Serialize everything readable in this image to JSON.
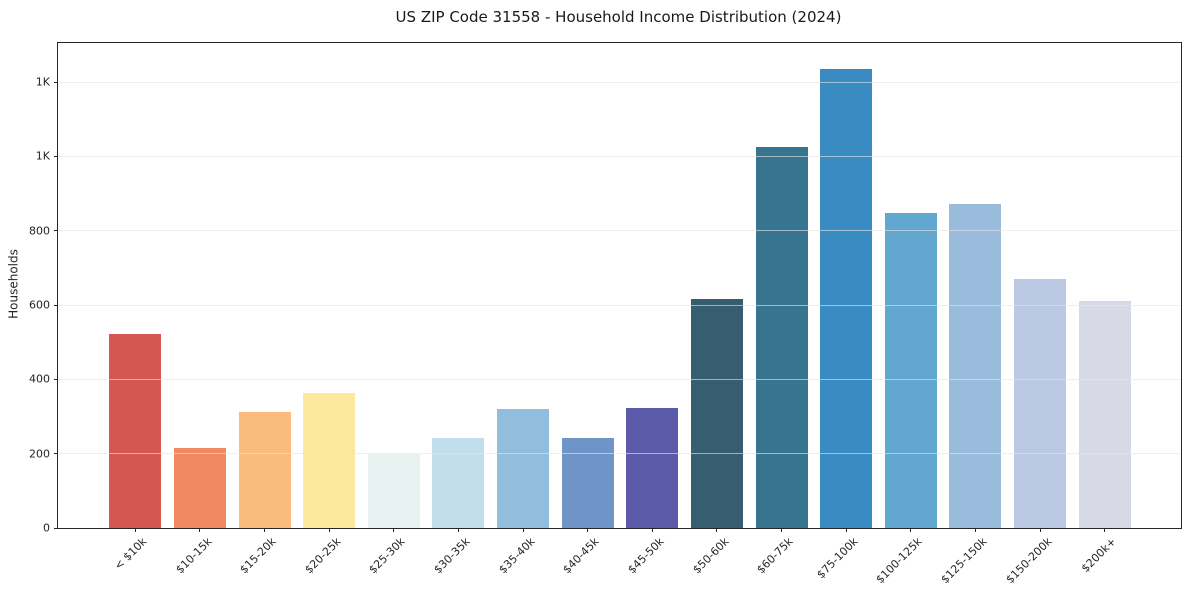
{
  "chart_data": {
    "type": "bar",
    "title": "US ZIP Code 31558 - Household Income Distribution (2024)",
    "xlabel": "",
    "ylabel": "Households",
    "categories": [
      "< $10k",
      "$10-15k",
      "$15-20k",
      "$20-25k",
      "$25-30k",
      "$30-35k",
      "$35-40k",
      "$40-45k",
      "$45-50k",
      "$50-60k",
      "$60-75k",
      "$75-100k",
      "$100-125k",
      "$125-150k",
      "$150-200k",
      "$200k+"
    ],
    "values": [
      522,
      215,
      313,
      362,
      198,
      241,
      319,
      242,
      324,
      616,
      1025,
      1234,
      848,
      871,
      670,
      612
    ],
    "bar_colors": [
      "#d6574f",
      "#f18a62",
      "#fabc7d",
      "#fde8a0",
      "#e8f2f1",
      "#c2deec",
      "#92bddc",
      "#6f94c8",
      "#5c5baa",
      "#365d70",
      "#37748f",
      "#398bc2",
      "#62a7cf",
      "#99bcdc",
      "#bcc9e2",
      "#d7d9e7"
    ],
    "ylim": [
      0,
      1305
    ],
    "yticks": {
      "values": [
        0,
        200,
        400,
        600,
        800,
        1000,
        1200
      ],
      "labels": [
        "0",
        "200",
        "400",
        "600",
        "800",
        "1K",
        "1K"
      ]
    },
    "grid": "horizontal",
    "grid_on_top": true,
    "legend": null,
    "colors": {
      "background": "#ffffff",
      "grid": "#e5e5e5",
      "spine": "#262626",
      "text": "#262626"
    }
  }
}
